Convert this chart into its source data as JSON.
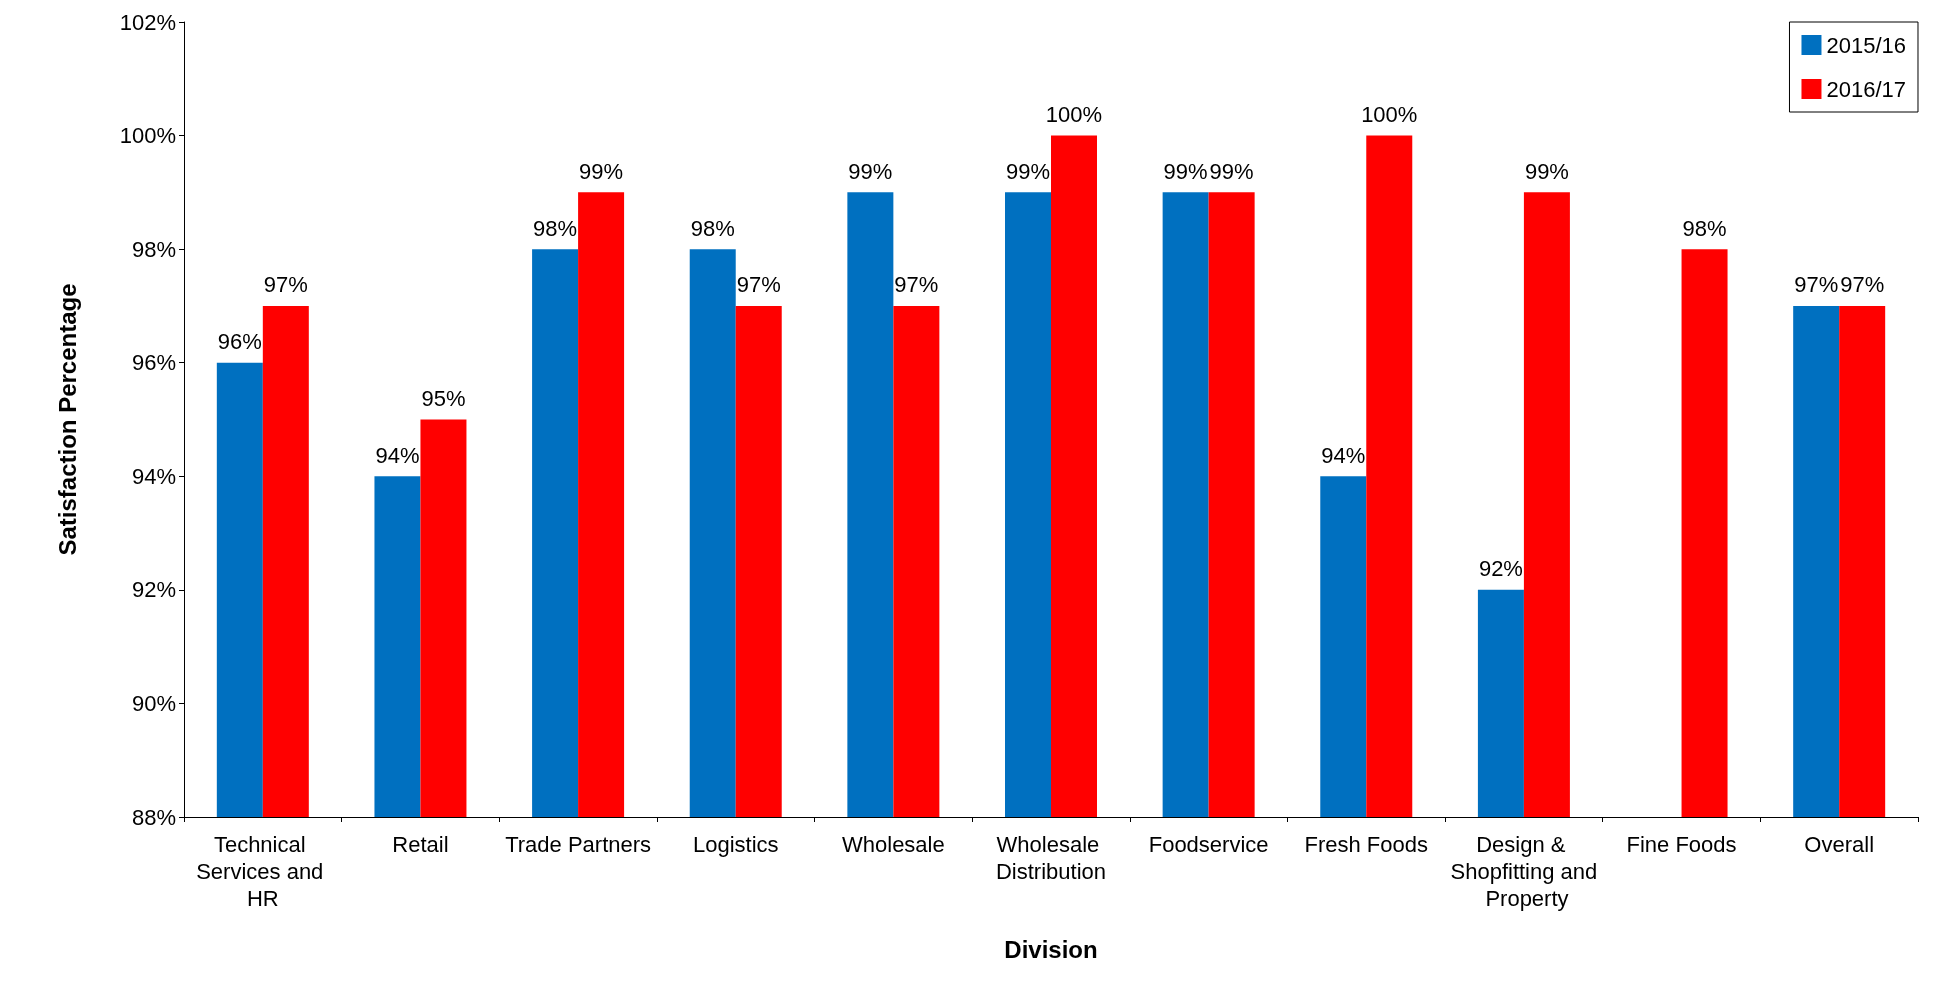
{
  "chart_data": {
    "type": "bar",
    "xlabel": "Division",
    "ylabel": "Satisfaction Percentage",
    "categories": [
      "Technical Services and HR",
      "Retail",
      "Trade Partners",
      "Logistics",
      "Wholesale",
      "Wholesale Distribution",
      "Foodservice",
      "Fresh Foods",
      "Design & Shopfitting and Property",
      "Fine Foods",
      "Overall"
    ],
    "series": [
      {
        "name": "2015/16",
        "color": "#0070c0",
        "values": [
          96,
          94,
          98,
          98,
          99,
          99,
          99,
          94,
          92,
          null,
          97
        ],
        "value_labels": [
          "96%",
          "94%",
          "98%",
          "98%",
          "99%",
          "99%",
          "99%",
          "94%",
          "92%",
          null,
          "97%"
        ]
      },
      {
        "name": "2016/17",
        "color": "#ff0000",
        "values": [
          97,
          95,
          99,
          97,
          97,
          100,
          99,
          100,
          99,
          98,
          97
        ],
        "value_labels": [
          "97%",
          "95%",
          "99%",
          "97%",
          "97%",
          "100%",
          "99%",
          "100%",
          "99%",
          "98%",
          "97%"
        ]
      }
    ],
    "ylim": [
      88,
      102
    ],
    "yticks": [
      {
        "value": 88,
        "label": "88%"
      },
      {
        "value": 90,
        "label": "90%"
      },
      {
        "value": 92,
        "label": "92%"
      },
      {
        "value": 94,
        "label": "94%"
      },
      {
        "value": 96,
        "label": "96%"
      },
      {
        "value": 98,
        "label": "98%"
      },
      {
        "value": 100,
        "label": "100%"
      },
      {
        "value": 102,
        "label": "102%"
      }
    ],
    "grid": false,
    "legend": "top right"
  }
}
